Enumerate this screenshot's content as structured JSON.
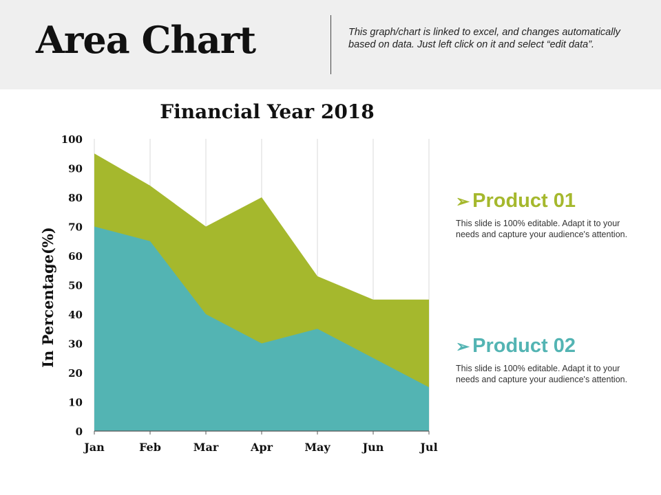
{
  "header": {
    "title": "Area Chart",
    "note": "This graph/chart is linked to excel, and changes automatically based on data. Just left click on it and select “edit data”."
  },
  "colors": {
    "product_01": "#a5b82d",
    "product_02": "#53b4b3",
    "gridline": "#d9d9d9"
  },
  "legend": [
    {
      "label": "Product 01",
      "icon": "arrowhead-icon",
      "description": "This slide is 100% editable. Adapt it to your needs and capture your audience's attention."
    },
    {
      "label": "Product 02",
      "icon": "arrowhead-icon",
      "description": "This slide is 100% editable. Adapt it to your needs and capture your audience's attention."
    }
  ],
  "chart_data": {
    "type": "area",
    "title": "Financial Year 2018",
    "ylabel": "In Percentage(%)",
    "xlabel": "",
    "categories": [
      "Jan",
      "Feb",
      "Mar",
      "Apr",
      "May",
      "Jun",
      "Jul"
    ],
    "ylim": [
      0,
      100
    ],
    "yticks": [
      0,
      10,
      20,
      30,
      40,
      50,
      60,
      70,
      80,
      90,
      100
    ],
    "grid": "vertical",
    "stacked": false,
    "legend_position": "right",
    "series": [
      {
        "name": "Product 01",
        "values": [
          95,
          84,
          70,
          80,
          53,
          45,
          45
        ]
      },
      {
        "name": "Product 02",
        "values": [
          70,
          65,
          40,
          30,
          35,
          25,
          15
        ]
      }
    ]
  }
}
